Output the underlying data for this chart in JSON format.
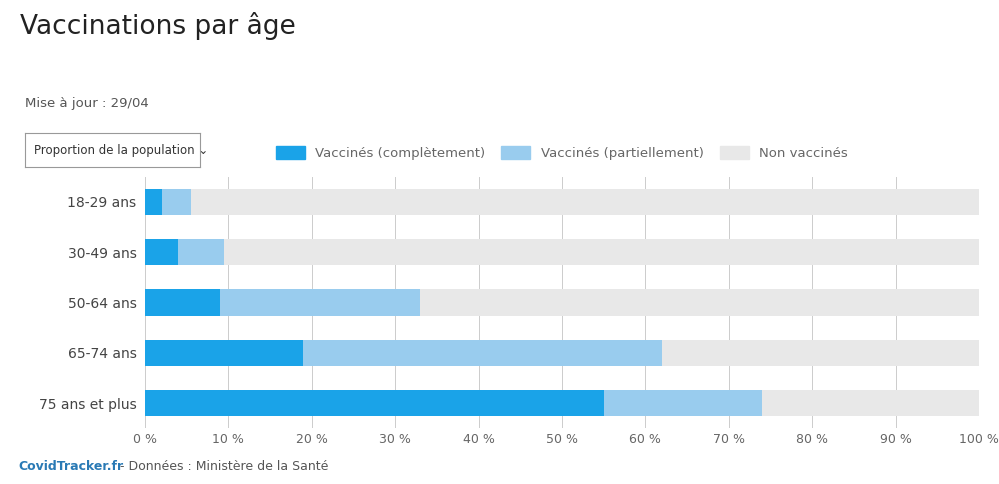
{
  "title": "Vaccinations par âge",
  "subtitle": "Mise à jour : 29/04",
  "dropdown_label": "Proportion de la population ✓",
  "categories": [
    "18-29 ans",
    "30-49 ans",
    "50-64 ans",
    "65-74 ans",
    "75 ans et plus"
  ],
  "complete": [
    2.0,
    4.0,
    9.0,
    19.0,
    55.0
  ],
  "partial": [
    3.5,
    5.5,
    24.0,
    43.0,
    19.0
  ],
  "non": [
    94.5,
    90.5,
    67.0,
    38.0,
    26.0
  ],
  "color_complete": "#1aa3e8",
  "color_partial": "#99ccee",
  "color_non": "#e8e8e8",
  "legend_labels": [
    "Vaccinés (complètement)",
    "Vaccinés (partiellement)",
    "Non vaccinés"
  ],
  "xlabel_ticks": [
    0,
    10,
    20,
    30,
    40,
    50,
    60,
    70,
    80,
    90,
    100
  ],
  "footer_color_1": "#2a7ab5",
  "footer_color_2": "#555555",
  "title_color": "#222222",
  "subtitle_color": "#555555",
  "background_color": "#ffffff",
  "bar_height": 0.52,
  "grid_color": "#cccccc"
}
